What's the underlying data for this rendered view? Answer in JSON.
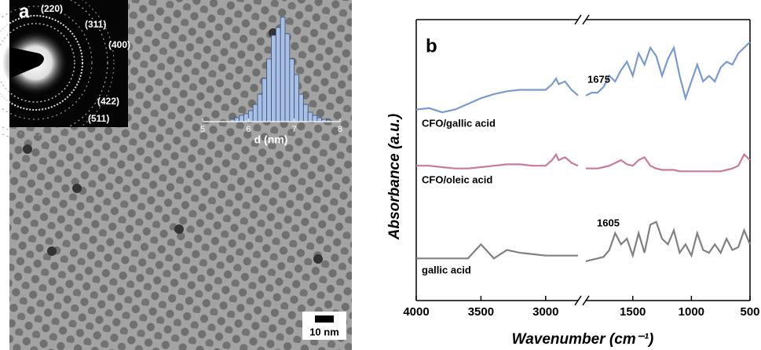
{
  "image_panel": {
    "label": "a",
    "saed_labels": [
      "(220)",
      "(311)",
      "(400)",
      "(422)",
      "(511)"
    ],
    "scale_bar": "10 nm"
  },
  "chart_data": [
    {
      "type": "histogram",
      "xlabel": "d (nm)",
      "color": "#a9bfe4",
      "bins": [
        5.6,
        5.7,
        5.8,
        5.9,
        6.0,
        6.1,
        6.2,
        6.3,
        6.4,
        6.5,
        6.6,
        6.7,
        6.8,
        6.9,
        7.0,
        7.1,
        7.2,
        7.3,
        7.4,
        7.5,
        7.6,
        7.7,
        7.8
      ],
      "values": [
        3,
        5,
        8,
        10,
        14,
        22,
        35,
        55,
        80,
        110,
        120,
        133,
        112,
        80,
        60,
        35,
        22,
        12,
        8,
        5,
        3,
        2
      ],
      "xlim": [
        5,
        8
      ],
      "xticks": [
        5,
        6,
        7,
        8
      ],
      "ylim": [
        0,
        135
      ]
    },
    {
      "type": "line",
      "panel_label": "b",
      "xlabel": "Wavenumber (cm⁻¹)",
      "ylabel": "Absorbance  (a.u.)",
      "xlim": [
        4000,
        500
      ],
      "xbreak": [
        2750,
        1900
      ],
      "xticks": [
        4000,
        3500,
        3000,
        1500,
        1000,
        500
      ],
      "ylim": [
        0,
        100
      ],
      "x": [
        4000,
        3900,
        3800,
        3700,
        3600,
        3500,
        3400,
        3300,
        3200,
        3100,
        3000,
        2950,
        2920,
        2900,
        2850,
        2800,
        2750,
        2300,
        1900,
        1850,
        1800,
        1750,
        1700,
        1650,
        1600,
        1550,
        1500,
        1450,
        1400,
        1350,
        1300,
        1250,
        1200,
        1150,
        1100,
        1050,
        1000,
        950,
        900,
        850,
        800,
        750,
        700,
        650,
        600,
        550,
        500
      ],
      "series": [
        {
          "name": "CFO/gallic acid",
          "color": "#7b9bcc",
          "values": [
            68,
            68.5,
            67,
            68,
            70,
            72,
            73.5,
            74.5,
            75,
            75,
            75,
            77,
            79,
            77,
            78,
            75,
            73,
            null,
            73,
            74,
            74,
            76,
            80,
            78,
            82,
            85,
            80,
            88,
            84,
            90,
            87,
            80,
            86,
            90,
            80,
            72,
            78,
            84,
            78,
            80,
            78,
            83,
            85,
            84,
            88,
            90,
            92
          ]
        },
        {
          "name": "CFO/oleic acid",
          "color": "#c97a9c",
          "values": [
            48,
            48,
            47.5,
            47,
            47,
            47.5,
            48,
            48.5,
            48.5,
            48,
            48,
            50,
            52,
            50,
            51,
            49,
            48,
            null,
            47,
            47,
            47,
            47.5,
            48,
            49,
            50,
            48.5,
            48,
            50,
            51,
            48,
            47,
            46.5,
            46.5,
            46.5,
            46,
            46,
            46,
            46,
            46,
            46,
            46,
            46,
            46.5,
            47,
            48,
            52,
            50
          ]
        },
        {
          "name": "gallic acid",
          "color": "#808080",
          "values": [
            15,
            15,
            15,
            15,
            15,
            20,
            15,
            18,
            17,
            16.5,
            16,
            16,
            16,
            16,
            16,
            16,
            16,
            null,
            14,
            14.5,
            15,
            15.5,
            18,
            24,
            20,
            22,
            16,
            24,
            17,
            27,
            28,
            22,
            20,
            25,
            17,
            20,
            16,
            24,
            18,
            17,
            20,
            17,
            22,
            18,
            19,
            25,
            20
          ]
        }
      ],
      "annotations": [
        "1675",
        "1605"
      ]
    }
  ]
}
